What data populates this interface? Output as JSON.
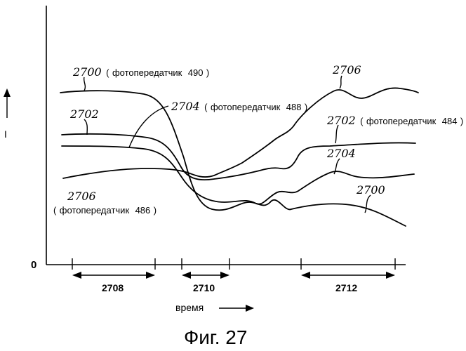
{
  "figure": {
    "caption": "Фиг. 27",
    "y_axis_label": "I",
    "y_zero_label": "0",
    "x_axis_label": "время"
  },
  "curves": [
    {
      "id": "2700",
      "ref": "2700",
      "label": "фотопередатчик",
      "label_num": "490",
      "end_ref": "2700"
    },
    {
      "id": "2702",
      "ref": "2702",
      "label": "фотопередатчик",
      "label_num": "484",
      "start_ref": "2702"
    },
    {
      "id": "2704",
      "ref": "2704",
      "label": "фотопередатчик",
      "label_num": "488",
      "end_ref": "2704"
    },
    {
      "id": "2706",
      "ref": "2706",
      "label": "фотопередатчик",
      "label_num": "486",
      "end_ref": "2706"
    }
  ],
  "intervals": [
    {
      "id": "2708",
      "label": "2708"
    },
    {
      "id": "2710",
      "label": "2710"
    },
    {
      "id": "2712",
      "label": "2712"
    }
  ]
}
